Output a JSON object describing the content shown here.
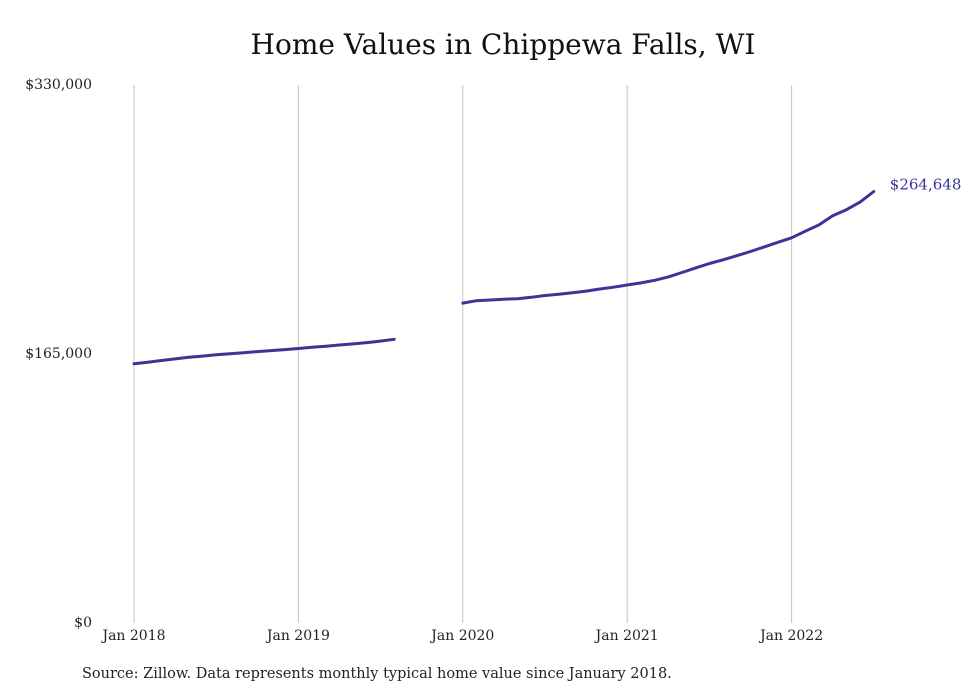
{
  "chart_data": {
    "type": "line",
    "title": "Home Values in Chippewa Falls, WI",
    "xlabel": "",
    "ylabel": "",
    "ylim": [
      0,
      330000
    ],
    "y_ticks": [
      {
        "value": 0,
        "label": "$0"
      },
      {
        "value": 165000,
        "label": "$165,000"
      },
      {
        "value": 330000,
        "label": "$330,000"
      }
    ],
    "x_ticks": [
      {
        "value": "2018-01",
        "label": "Jan 2018"
      },
      {
        "value": "2019-01",
        "label": "Jan 2019"
      },
      {
        "value": "2020-01",
        "label": "Jan 2020"
      },
      {
        "value": "2021-01",
        "label": "Jan 2021"
      },
      {
        "value": "2022-01",
        "label": "Jan 2022"
      }
    ],
    "grid": {
      "vertical": true,
      "horizontal": false
    },
    "series": [
      {
        "color": "#3a3596",
        "end_label": "$264,648",
        "points": [
          {
            "x": "2018-01",
            "y": 159000
          },
          {
            "x": "2018-02",
            "y": 160000
          },
          {
            "x": "2018-03",
            "y": 161000
          },
          {
            "x": "2018-04",
            "y": 162000
          },
          {
            "x": "2018-05",
            "y": 163000
          },
          {
            "x": "2018-06",
            "y": 163700
          },
          {
            "x": "2018-07",
            "y": 164500
          },
          {
            "x": "2018-08",
            "y": 165200
          },
          {
            "x": "2018-09",
            "y": 165800
          },
          {
            "x": "2018-10",
            "y": 166500
          },
          {
            "x": "2018-11",
            "y": 167100
          },
          {
            "x": "2018-12",
            "y": 167700
          },
          {
            "x": "2019-01",
            "y": 168400
          },
          {
            "x": "2019-02",
            "y": 169100
          },
          {
            "x": "2019-03",
            "y": 169800
          },
          {
            "x": "2019-04",
            "y": 170500
          },
          {
            "x": "2019-05",
            "y": 171200
          },
          {
            "x": "2019-06",
            "y": 172000
          },
          {
            "x": "2019-07",
            "y": 172900
          },
          {
            "x": "2019-08",
            "y": 174000
          },
          {
            "x": "2019-09",
            "y": null
          },
          {
            "x": "2019-10",
            "y": null
          },
          {
            "x": "2019-11",
            "y": null
          },
          {
            "x": "2019-12",
            "y": null
          },
          {
            "x": "2020-01",
            "y": 196200
          },
          {
            "x": "2020-02",
            "y": 197700
          },
          {
            "x": "2020-03",
            "y": 198100
          },
          {
            "x": "2020-04",
            "y": 198600
          },
          {
            "x": "2020-05",
            "y": 198900
          },
          {
            "x": "2020-06",
            "y": 199800
          },
          {
            "x": "2020-07",
            "y": 200900
          },
          {
            "x": "2020-08",
            "y": 201700
          },
          {
            "x": "2020-09",
            "y": 202600
          },
          {
            "x": "2020-10",
            "y": 203600
          },
          {
            "x": "2020-11",
            "y": 204900
          },
          {
            "x": "2020-12",
            "y": 206000
          },
          {
            "x": "2021-01",
            "y": 207300
          },
          {
            "x": "2021-02",
            "y": 208600
          },
          {
            "x": "2021-03",
            "y": 210200
          },
          {
            "x": "2021-04",
            "y": 212300
          },
          {
            "x": "2021-05",
            "y": 215000
          },
          {
            "x": "2021-06",
            "y": 217800
          },
          {
            "x": "2021-07",
            "y": 220500
          },
          {
            "x": "2021-08",
            "y": 222800
          },
          {
            "x": "2021-09",
            "y": 225300
          },
          {
            "x": "2021-10",
            "y": 227900
          },
          {
            "x": "2021-11",
            "y": 230700
          },
          {
            "x": "2021-12",
            "y": 233500
          },
          {
            "x": "2022-01",
            "y": 236300
          },
          {
            "x": "2022-02",
            "y": 240300
          },
          {
            "x": "2022-03",
            "y": 244200
          },
          {
            "x": "2022-04",
            "y": 249800
          },
          {
            "x": "2022-05",
            "y": 253500
          },
          {
            "x": "2022-06",
            "y": 258200
          },
          {
            "x": "2022-07",
            "y": 264648
          }
        ]
      }
    ]
  },
  "source_note": "Source: Zillow. Data represents monthly typical home value since January 2018."
}
